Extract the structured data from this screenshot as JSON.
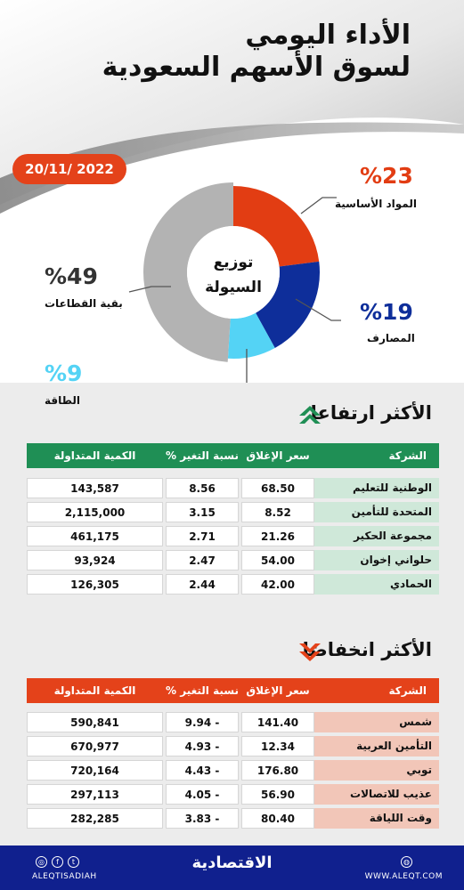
{
  "header": {
    "title_line1": "الأداء اليومي",
    "title_line2": "لسوق الأسهم السعودية",
    "date": "20/11/ 2022"
  },
  "liquidity": {
    "center_line1": "توزيع",
    "center_line2": "السيولة",
    "segments": [
      {
        "label": "المواد الأساسية",
        "percent_text": "%23",
        "value": 23,
        "color": "#e23d13"
      },
      {
        "label": "المصارف",
        "percent_text": "%19",
        "value": 19,
        "color": "#0e2e9a"
      },
      {
        "label": "الطاقة",
        "percent_text": "%9",
        "value": 9,
        "color": "#54d3f5"
      },
      {
        "label": "بقية القطاعات",
        "percent_text": "%49",
        "value": 49,
        "color": "#b3b3b3"
      }
    ]
  },
  "gainers": {
    "title": "الأكثر ارتفاعا",
    "head_color": "#1f8f55",
    "name_bg": "#cfe8d9",
    "columns": {
      "company": "الشركة",
      "close": "سعر الإغلاق",
      "change": "نسبة التغير %",
      "volume": "الكمية المتداولة"
    },
    "rows": [
      {
        "company": "الوطنية للتعليم",
        "close": "68.50",
        "change": "8.56",
        "volume": "143,587"
      },
      {
        "company": "المتحدة للتأمين",
        "close": "8.52",
        "change": "3.15",
        "volume": "2,115,000"
      },
      {
        "company": "مجموعة الحكير",
        "close": "21.26",
        "change": "2.71",
        "volume": "461,175"
      },
      {
        "company": "حلواني إخوان",
        "close": "54.00",
        "change": "2.47",
        "volume": "93,924"
      },
      {
        "company": "الحمادي",
        "close": "42.00",
        "change": "2.44",
        "volume": "126,305"
      }
    ]
  },
  "losers": {
    "title": "الأكثر انخفاضا",
    "head_color": "#e4421a",
    "name_bg": "#f2c6b8",
    "columns": {
      "company": "الشركة",
      "close": "سعر الإغلاق",
      "change": "نسبة التغير %",
      "volume": "الكمية المتداولة"
    },
    "rows": [
      {
        "company": "شمس",
        "close": "141.40",
        "change": "9.94 -",
        "volume": "590,841"
      },
      {
        "company": "التأمين العربية",
        "close": "12.34",
        "change": "4.93 -",
        "volume": "670,977"
      },
      {
        "company": "توبي",
        "close": "176.80",
        "change": "4.43 -",
        "volume": "720,164"
      },
      {
        "company": "عذيب للاتصالات",
        "close": "56.90",
        "change": "4.05 -",
        "volume": "297,113"
      },
      {
        "company": "وقت اللياقة",
        "close": "80.40",
        "change": "3.83 -",
        "volume": "282,285"
      }
    ]
  },
  "footer": {
    "brand": "الاقتصادية",
    "handle": "ALEQTISADIAH",
    "site": "WWW.ALEQT.COM",
    "bg_color": "#10208e"
  },
  "icons": [
    "instagram-icon",
    "facebook-icon",
    "twitter-icon",
    "web-icon",
    "arrow-up-icon",
    "arrow-down-icon"
  ]
}
